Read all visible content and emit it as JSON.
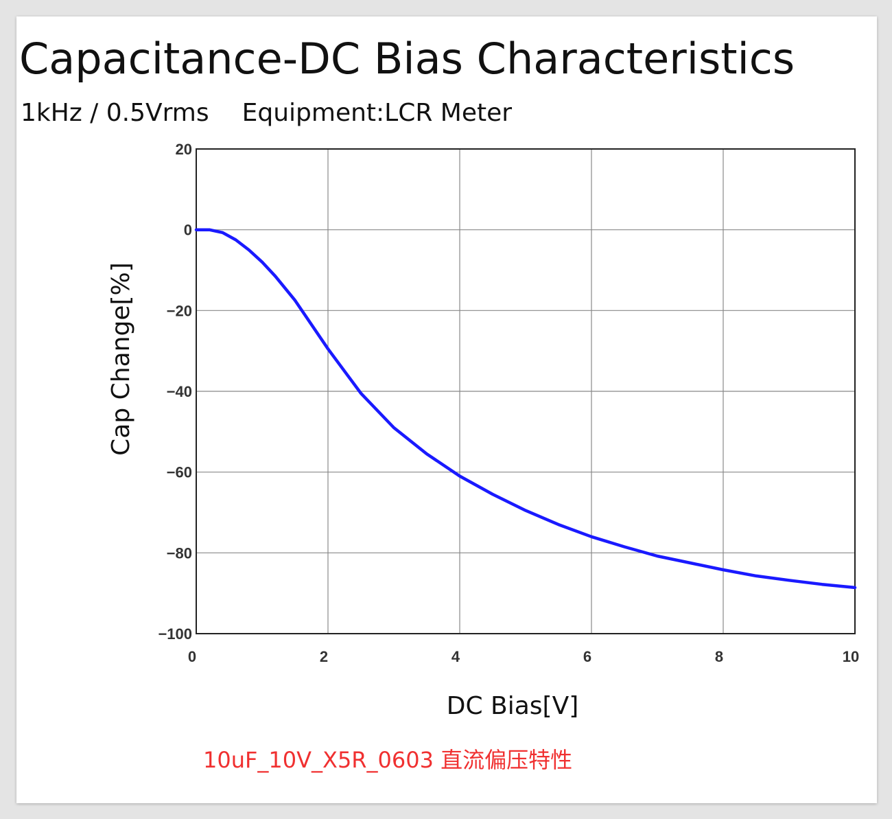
{
  "header": {
    "title": "Capacitance-DC Bias Characteristics",
    "condition": "1kHz / 0.5Vrms",
    "equipment": "Equipment:LCR Meter"
  },
  "caption": {
    "text": "10uF_10V_X5R_0603 直流偏压特性",
    "color": "#f03030"
  },
  "chart_data": {
    "type": "line",
    "title": "Capacitance-DC Bias Characteristics",
    "xlabel": "DC Bias[V]",
    "ylabel": "Cap Change[%]",
    "xlim": [
      0,
      10
    ],
    "ylim": [
      -100,
      20
    ],
    "xticks": [
      0,
      2,
      4,
      6,
      8,
      10
    ],
    "yticks": [
      20,
      0,
      -20,
      -40,
      -60,
      -80,
      -100
    ],
    "xtick_labels": [
      "0",
      "2",
      "4",
      "6",
      "8",
      "10"
    ],
    "ytick_labels": [
      "20",
      "0",
      "−20",
      "−40",
      "−60",
      "−80",
      "−100"
    ],
    "grid": true,
    "series": [
      {
        "color": "#1a1aff",
        "x": [
          0,
          0.2,
          0.4,
          0.6,
          0.8,
          1.0,
          1.2,
          1.5,
          2.0,
          2.5,
          3.0,
          3.5,
          4.0,
          4.5,
          5.0,
          5.5,
          6.0,
          6.5,
          7.0,
          7.5,
          8.0,
          8.5,
          9.0,
          9.5,
          10.0
        ],
        "y": [
          0,
          0,
          -0.7,
          -2.5,
          -5,
          -8,
          -11.5,
          -17.5,
          -29.5,
          -40.5,
          -49,
          -55.5,
          -61,
          -65.5,
          -69.5,
          -73,
          -76,
          -78.5,
          -80.8,
          -82.5,
          -84.2,
          -85.7,
          -86.8,
          -87.8,
          -88.6
        ]
      }
    ]
  }
}
